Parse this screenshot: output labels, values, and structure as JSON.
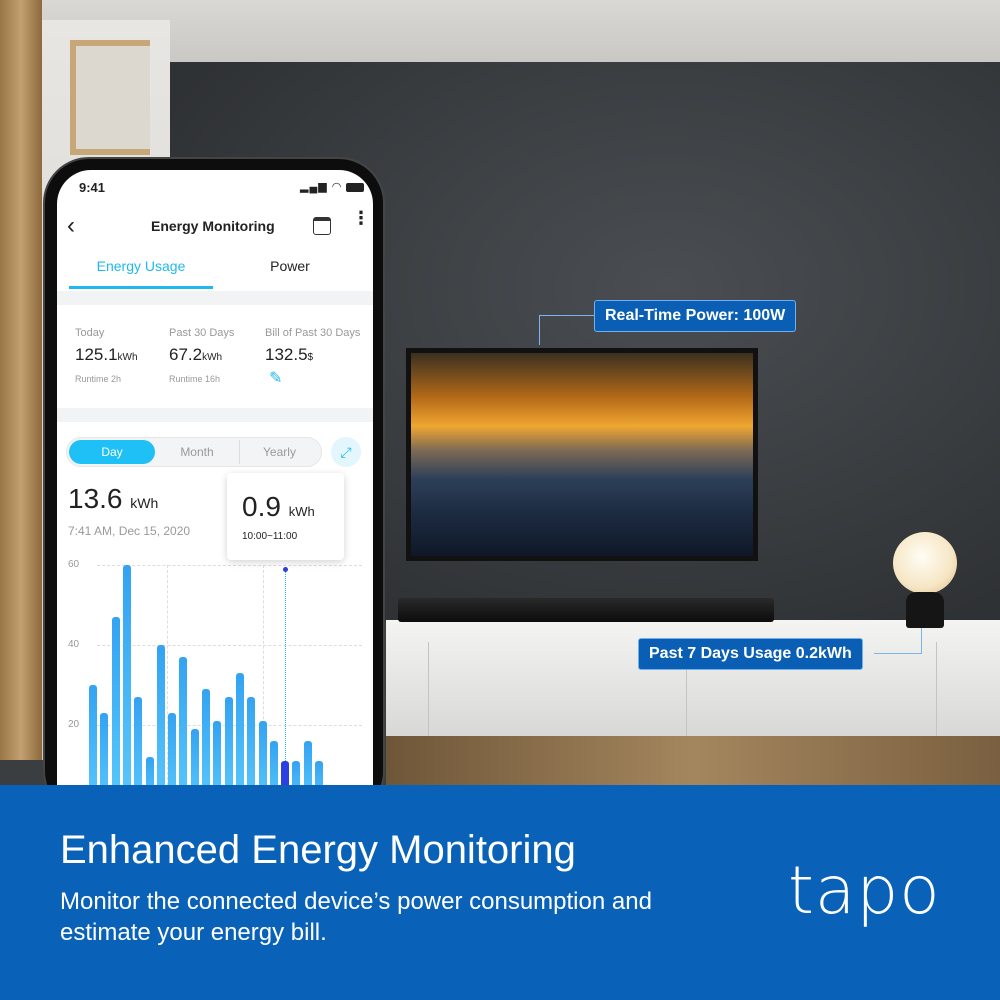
{
  "colors": {
    "brand_blue": "#0a62b8",
    "accent": "#1fb9ee",
    "selected_bar": "#2c3fe0"
  },
  "callouts": {
    "realtime": "Real-Time Power: 100W",
    "past7": "Past 7 Days Usage 0.2kWh"
  },
  "banner": {
    "headline": "Enhanced Energy Monitoring",
    "subtitle": "Monitor the connected device’s power consumption and estimate your energy bill.",
    "logo": "tapo"
  },
  "phone": {
    "status": {
      "time": "9:41",
      "icons": [
        "signal-icon",
        "wifi-icon",
        "battery-icon"
      ]
    },
    "header": {
      "title": "Energy Monitoring",
      "back_icon": "chevron-left-icon",
      "calendar_icon": "calendar-icon",
      "more_icon": "more-vertical-icon"
    },
    "tabs": [
      {
        "label": "Energy Usage",
        "active": true
      },
      {
        "label": "Power",
        "active": false
      }
    ],
    "stats": [
      {
        "label": "Today",
        "value": "125.1",
        "unit": "kWh",
        "sub": "Runtime 2h"
      },
      {
        "label": "Past 30 Days",
        "value": "67.2",
        "unit": "kWh",
        "sub": "Runtime 16h"
      },
      {
        "label": "Bill of Past 30 Days",
        "value": "132.5",
        "unit": "$",
        "edit_icon": "pencil-icon"
      }
    ],
    "segments": [
      {
        "label": "Day",
        "active": true
      },
      {
        "label": "Month",
        "active": false
      },
      {
        "label": "Yearly",
        "active": false
      }
    ],
    "expand_icon": "expand-icon",
    "total": {
      "value": "13.6",
      "unit": "kWh",
      "timestamp": "7:41 AM, Dec 15, 2020"
    },
    "tooltip": {
      "value": "0.9",
      "unit": "kWh",
      "range": "10:00~11:00"
    }
  },
  "chart_data": {
    "type": "bar",
    "y_ticks": [
      "60",
      "40",
      "20"
    ],
    "ylim": [
      0,
      60
    ],
    "grid": true,
    "values": [
      30,
      23,
      47,
      60,
      27,
      12,
      40,
      23,
      37,
      19,
      29,
      21,
      27,
      33,
      27,
      21,
      16,
      11,
      11,
      16,
      11,
      0.3,
      0.3
    ],
    "selected_index": 17
  }
}
